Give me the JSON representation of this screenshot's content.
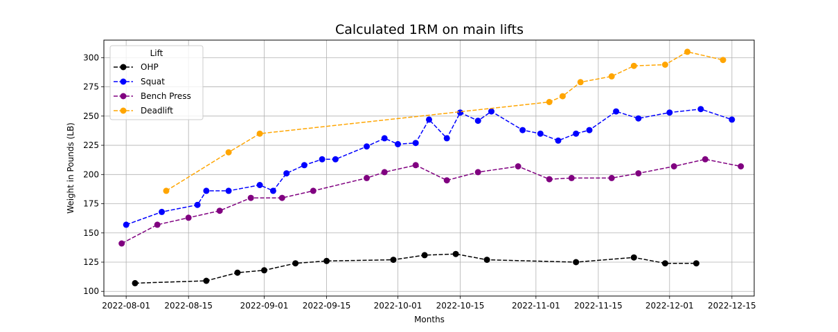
{
  "chart_data": {
    "type": "line",
    "title": "Calculated 1RM on main lifts",
    "xlabel": "Months",
    "ylabel": "Weight in Pounds (LB)",
    "xlim": [
      "2022-07-27",
      "2022-12-20"
    ],
    "ylim": [
      96,
      315
    ],
    "x_ticks": [
      "2022-08-01",
      "2022-08-15",
      "2022-09-01",
      "2022-09-15",
      "2022-10-01",
      "2022-10-15",
      "2022-11-01",
      "2022-11-15",
      "2022-12-01",
      "2022-12-15"
    ],
    "y_ticks": [
      100,
      125,
      150,
      175,
      200,
      225,
      250,
      275,
      300
    ],
    "grid": true,
    "legend": {
      "title": "Lift",
      "placement": "upper-left"
    },
    "series": [
      {
        "name": "OHP",
        "color": "#000000",
        "points": [
          [
            "2022-08-03",
            107
          ],
          [
            "2022-08-19",
            109
          ],
          [
            "2022-08-26",
            116
          ],
          [
            "2022-09-01",
            118
          ],
          [
            "2022-09-08",
            124
          ],
          [
            "2022-09-15",
            126
          ],
          [
            "2022-09-30",
            127
          ],
          [
            "2022-10-07",
            131
          ],
          [
            "2022-10-14",
            132
          ],
          [
            "2022-10-21",
            127
          ],
          [
            "2022-11-10",
            125
          ],
          [
            "2022-11-23",
            129
          ],
          [
            "2022-11-30",
            124
          ],
          [
            "2022-12-07",
            124
          ]
        ]
      },
      {
        "name": "Squat",
        "color": "#0000ff",
        "points": [
          [
            "2022-08-01",
            157
          ],
          [
            "2022-08-09",
            168
          ],
          [
            "2022-08-17",
            174
          ],
          [
            "2022-08-19",
            186
          ],
          [
            "2022-08-24",
            186
          ],
          [
            "2022-08-31",
            191
          ],
          [
            "2022-09-03",
            186
          ],
          [
            "2022-09-06",
            201
          ],
          [
            "2022-09-10",
            208
          ],
          [
            "2022-09-14",
            213
          ],
          [
            "2022-09-17",
            213
          ],
          [
            "2022-09-24",
            224
          ],
          [
            "2022-09-28",
            231
          ],
          [
            "2022-10-01",
            226
          ],
          [
            "2022-10-05",
            227
          ],
          [
            "2022-10-08",
            247
          ],
          [
            "2022-10-12",
            231
          ],
          [
            "2022-10-15",
            253
          ],
          [
            "2022-10-19",
            246
          ],
          [
            "2022-10-22",
            254
          ],
          [
            "2022-10-29",
            238
          ],
          [
            "2022-11-02",
            235
          ],
          [
            "2022-11-06",
            229
          ],
          [
            "2022-11-10",
            235
          ],
          [
            "2022-11-13",
            238
          ],
          [
            "2022-11-19",
            254
          ],
          [
            "2022-11-24",
            248
          ],
          [
            "2022-12-01",
            253
          ],
          [
            "2022-12-08",
            256
          ],
          [
            "2022-12-15",
            247
          ]
        ]
      },
      {
        "name": "Bench Press",
        "color": "#800080",
        "points": [
          [
            "2022-07-31",
            141
          ],
          [
            "2022-08-08",
            157
          ],
          [
            "2022-08-15",
            163
          ],
          [
            "2022-08-22",
            169
          ],
          [
            "2022-08-29",
            180
          ],
          [
            "2022-09-05",
            180
          ],
          [
            "2022-09-12",
            186
          ],
          [
            "2022-09-24",
            197
          ],
          [
            "2022-09-28",
            202
          ],
          [
            "2022-10-05",
            208
          ],
          [
            "2022-10-12",
            195
          ],
          [
            "2022-10-19",
            202
          ],
          [
            "2022-10-28",
            207
          ],
          [
            "2022-11-04",
            196
          ],
          [
            "2022-11-09",
            197
          ],
          [
            "2022-11-18",
            197
          ],
          [
            "2022-11-24",
            201
          ],
          [
            "2022-12-02",
            207
          ],
          [
            "2022-12-09",
            213
          ],
          [
            "2022-12-17",
            207
          ]
        ]
      },
      {
        "name": "Deadlift",
        "color": "#ffa500",
        "points": [
          [
            "2022-08-10",
            186
          ],
          [
            "2022-08-24",
            219
          ],
          [
            "2022-08-31",
            235
          ],
          [
            "2022-11-04",
            262
          ],
          [
            "2022-11-07",
            267
          ],
          [
            "2022-11-11",
            279
          ],
          [
            "2022-11-18",
            284
          ],
          [
            "2022-11-23",
            293
          ],
          [
            "2022-11-30",
            294
          ],
          [
            "2022-12-05",
            305
          ],
          [
            "2022-12-13",
            298
          ]
        ]
      }
    ]
  }
}
